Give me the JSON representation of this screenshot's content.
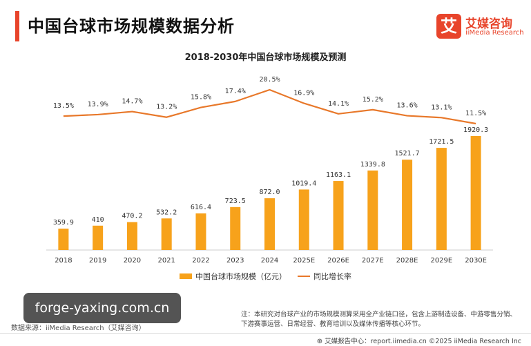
{
  "page_title": "中国台球市场规模数据分析",
  "logo": {
    "mark": "艾",
    "name_cn": "艾媒咨询",
    "name_en": "iiMedia Research"
  },
  "watermark": "forge-yaxing.com.cn",
  "source": "数据来源：iiMedia Research（艾媒咨询）",
  "note": "注：本研究对台球产业的市场规模测算采用全产业链口径，包含上游制造设备、中游零售分销、下游赛事运营、日常经营、教育培训以及媒体传播等核心环节。",
  "footer": {
    "icon": "⊕",
    "text": "艾媒报告中心：report.iimedia.cn    ©2025  iiMedia Research  Inc"
  },
  "colors": {
    "accent": "#e8442b",
    "bar": "#f7a21b",
    "line": "#e8782a"
  },
  "chart_data": {
    "type": "bar",
    "title": "2018-2030年中国台球市场规模及预测",
    "categories": [
      "2018",
      "2019",
      "2020",
      "2021",
      "2022",
      "2023",
      "2024",
      "2025E",
      "2026E",
      "2027E",
      "2028E",
      "2029E",
      "2030E"
    ],
    "series": [
      {
        "name": "中国台球市场规模（亿元）",
        "type": "bar",
        "values": [
          359.9,
          410,
          470.2,
          532.2,
          616.4,
          723.5,
          872.0,
          1019.4,
          1163.1,
          1339.8,
          1521.7,
          1721.5,
          1920.3
        ],
        "labels": [
          "359.9",
          "410",
          "470.2",
          "532.2",
          "616.4",
          "723.5",
          "872.0",
          "1019.4",
          "1163.1",
          "1339.8",
          "1521.7",
          "1721.5",
          "1920.3"
        ]
      },
      {
        "name": "同比增长率",
        "type": "line",
        "values": [
          13.5,
          13.9,
          14.7,
          13.2,
          15.8,
          17.4,
          20.5,
          16.9,
          14.1,
          15.2,
          13.6,
          13.1,
          11.5
        ],
        "labels": [
          "13.5%",
          "13.9%",
          "14.7%",
          "13.2%",
          "15.8%",
          "17.4%",
          "20.5%",
          "16.9%",
          "14.1%",
          "15.2%",
          "13.6%",
          "13.1%",
          "11.5%"
        ]
      }
    ],
    "legend_position": "bottom",
    "grid": false
  }
}
